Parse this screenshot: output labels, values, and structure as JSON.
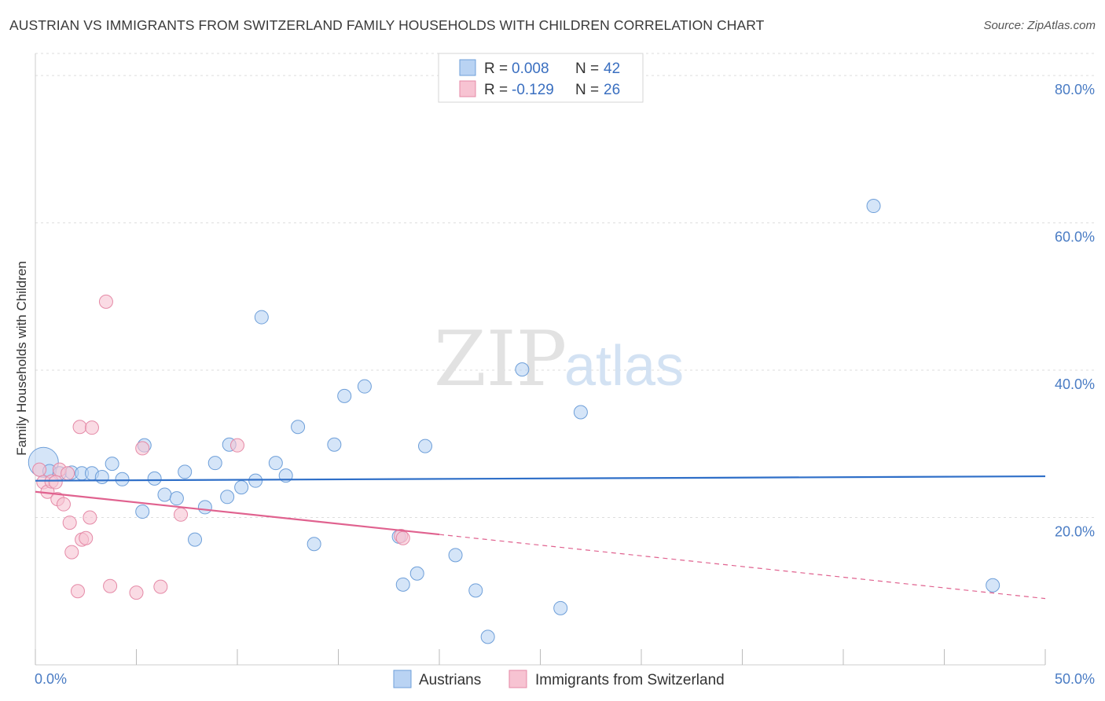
{
  "title": "AUSTRIAN VS IMMIGRANTS FROM SWITZERLAND FAMILY HOUSEHOLDS WITH CHILDREN CORRELATION CHART",
  "source": "Source: ZipAtlas.com",
  "watermark": {
    "zip": "ZIP",
    "atlas": "atlas"
  },
  "colors": {
    "austrians_fill": "#b9d3f3",
    "austrians_stroke": "#6e9fd9",
    "austrians_line": "#2f6fc8",
    "swiss_fill": "#f7c3d2",
    "swiss_stroke": "#e58aa7",
    "swiss_line": "#e0628f",
    "grid": "#dddddd",
    "tick_text": "#4a7cc4"
  },
  "legend": {
    "rows": [
      {
        "r_label": "R = ",
        "r_value": "0.008",
        "n_label": "N = ",
        "n_value": "42"
      },
      {
        "r_label": "R = ",
        "r_value": "-0.129",
        "n_label": "N = ",
        "n_value": "26"
      }
    ]
  },
  "chart_data": {
    "type": "scatter",
    "ylabel": "Family Households with Children",
    "xlabel": "",
    "xlim": [
      0,
      50
    ],
    "ylim": [
      0,
      83
    ],
    "x_tick_labels": [
      {
        "v": 0,
        "label": "0.0%"
      },
      {
        "v": 50,
        "label": "50.0%"
      }
    ],
    "y_ticks": [
      {
        "v": 20,
        "label": "20.0%"
      },
      {
        "v": 40,
        "label": "40.0%"
      },
      {
        "v": 60,
        "label": "60.0%"
      },
      {
        "v": 80,
        "label": "80.0%"
      }
    ],
    "x_minor_ticks": [
      0,
      5,
      10,
      15,
      20,
      25,
      30,
      35,
      40,
      45,
      50
    ],
    "series": [
      {
        "name": "Austrians",
        "trend": {
          "x0": 0,
          "y0": 25.0,
          "x1": 50,
          "y1": 25.6,
          "dash_from": null
        },
        "points": [
          [
            0.4,
            27.5,
            "big"
          ],
          [
            0.7,
            26.3
          ],
          [
            1.2,
            26.0
          ],
          [
            1.8,
            26.1
          ],
          [
            2.3,
            26.0
          ],
          [
            2.8,
            26.0
          ],
          [
            3.3,
            25.5
          ],
          [
            3.8,
            27.3
          ],
          [
            4.3,
            25.2
          ],
          [
            5.3,
            20.8
          ],
          [
            5.4,
            29.8
          ],
          [
            5.9,
            25.3
          ],
          [
            6.4,
            23.1
          ],
          [
            7.0,
            22.6
          ],
          [
            7.4,
            26.2
          ],
          [
            7.9,
            17.0
          ],
          [
            8.4,
            21.4
          ],
          [
            8.9,
            27.4
          ],
          [
            9.5,
            22.8
          ],
          [
            9.6,
            29.9
          ],
          [
            10.2,
            24.1
          ],
          [
            10.9,
            25.0
          ],
          [
            11.2,
            47.2
          ],
          [
            11.9,
            27.4
          ],
          [
            12.4,
            25.7
          ],
          [
            13.0,
            32.3
          ],
          [
            13.8,
            16.4
          ],
          [
            14.8,
            29.9
          ],
          [
            15.3,
            36.5
          ],
          [
            16.3,
            37.8
          ],
          [
            18.0,
            17.4
          ],
          [
            18.2,
            10.9
          ],
          [
            18.9,
            12.4
          ],
          [
            19.3,
            29.7
          ],
          [
            20.8,
            14.9
          ],
          [
            21.8,
            10.1
          ],
          [
            22.4,
            3.8
          ],
          [
            24.1,
            40.1
          ],
          [
            26.0,
            7.7
          ],
          [
            27.0,
            34.3
          ],
          [
            41.5,
            62.3
          ],
          [
            47.4,
            10.8
          ]
        ]
      },
      {
        "name": "Immigrants from Switzerland",
        "trend": {
          "x0": 0,
          "y0": 23.5,
          "x1": 50,
          "y1": 9.0,
          "dash_from": 20
        },
        "points": [
          [
            0.2,
            26.5
          ],
          [
            0.4,
            24.8
          ],
          [
            0.6,
            23.5
          ],
          [
            0.8,
            24.9
          ],
          [
            1.0,
            24.8
          ],
          [
            1.1,
            22.5
          ],
          [
            1.2,
            26.5
          ],
          [
            1.4,
            21.8
          ],
          [
            1.6,
            26.0
          ],
          [
            1.7,
            19.3
          ],
          [
            1.8,
            15.3
          ],
          [
            2.1,
            10.0
          ],
          [
            2.2,
            32.3
          ],
          [
            2.3,
            17.0
          ],
          [
            2.5,
            17.2
          ],
          [
            2.7,
            20.0
          ],
          [
            2.8,
            32.2
          ],
          [
            3.7,
            10.7
          ],
          [
            3.5,
            49.3
          ],
          [
            5.0,
            9.8
          ],
          [
            5.3,
            29.4
          ],
          [
            6.2,
            10.6
          ],
          [
            7.2,
            20.4
          ],
          [
            10.0,
            29.8
          ],
          [
            18.1,
            17.5
          ],
          [
            18.2,
            17.2
          ]
        ]
      }
    ]
  },
  "bottom_legend": [
    {
      "label": "Austrians"
    },
    {
      "label": "Immigrants from Switzerland"
    }
  ]
}
